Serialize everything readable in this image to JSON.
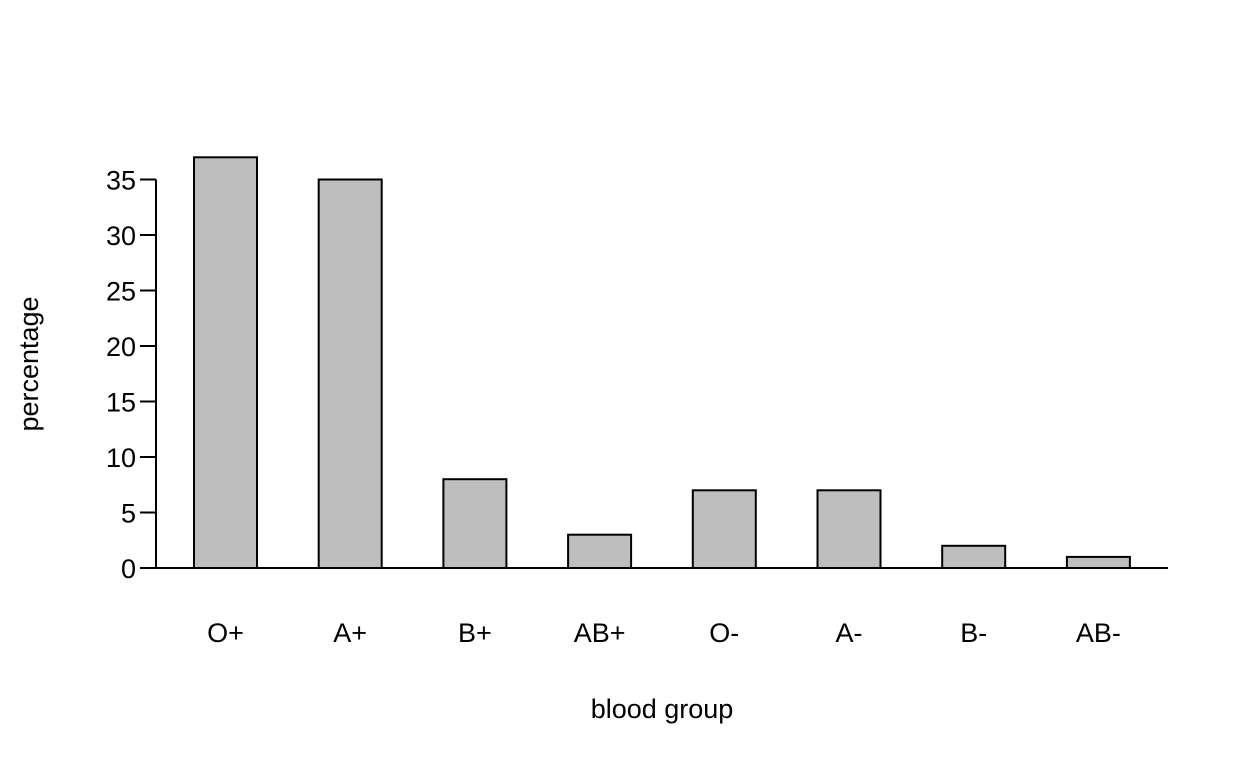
{
  "chart_data": {
    "type": "bar",
    "categories": [
      "O+",
      "A+",
      "B+",
      "AB+",
      "O-",
      "A-",
      "B-",
      "AB-"
    ],
    "values": [
      37,
      35,
      8,
      3,
      7,
      7,
      2,
      1
    ],
    "title": "",
    "xlabel": "blood group",
    "ylabel": "percentage",
    "ylim": [
      0,
      35
    ],
    "yticks": [
      "0",
      "5",
      "10",
      "15",
      "20",
      "25",
      "30",
      "35"
    ],
    "grid": false,
    "colors": {
      "bar_fill": "#bebebe",
      "bar_stroke": "#000000",
      "axis": "#000000"
    }
  }
}
